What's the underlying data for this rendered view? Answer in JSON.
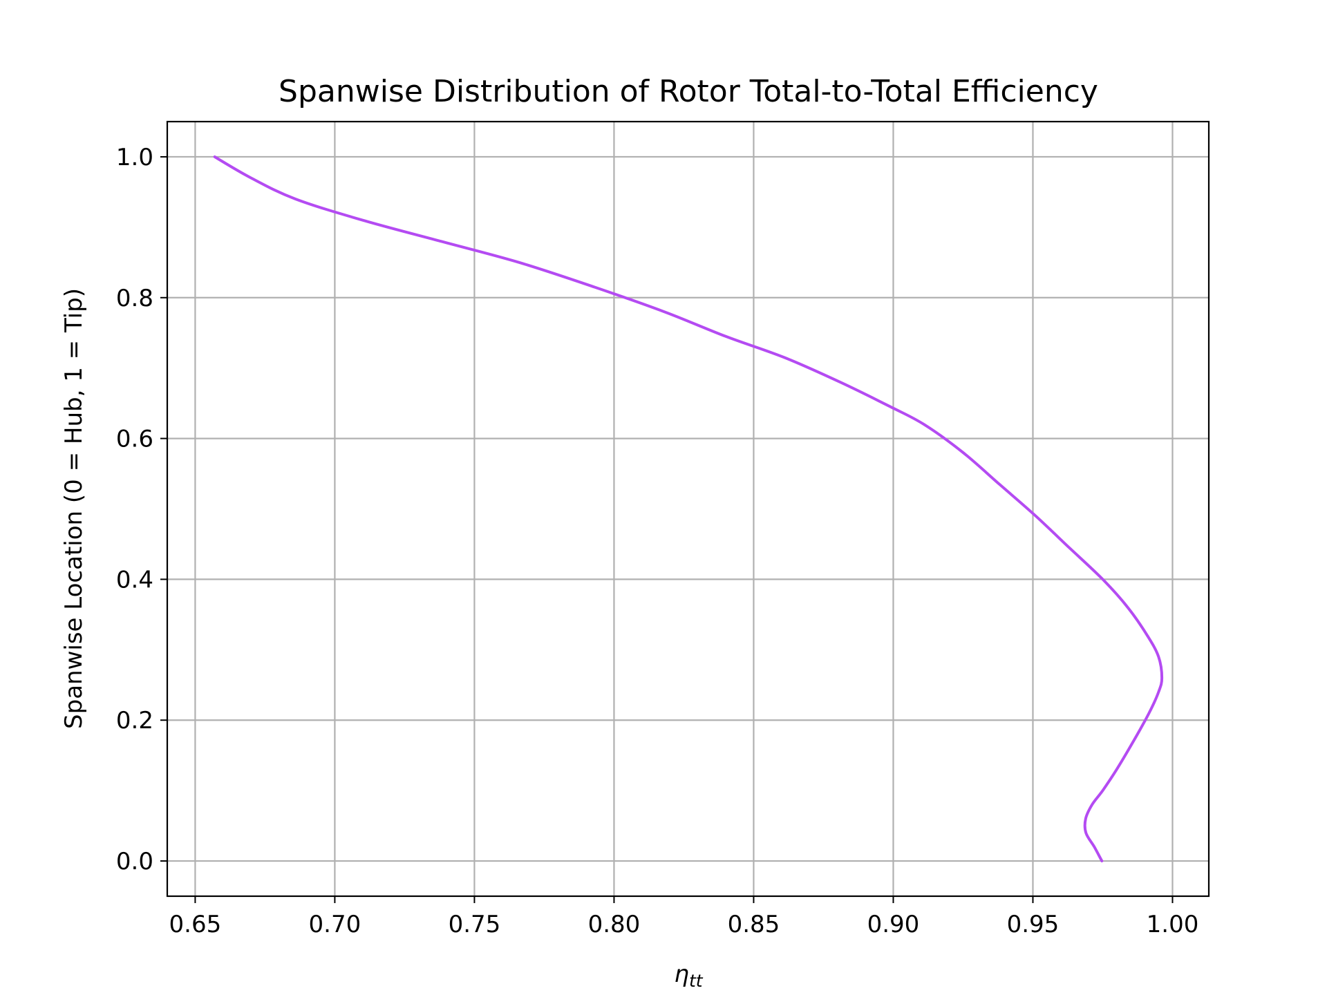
{
  "chart_data": {
    "type": "line",
    "title": "Spanwise Distribution of Rotor Total-to-Total Efficiency",
    "xlabel": "η",
    "xlabel_sub": "tt",
    "ylabel": "Spanwise Location (0 = Hub, 1 = Tip)",
    "xlim": [
      0.64,
      1.013
    ],
    "ylim": [
      -0.05,
      1.05
    ],
    "xticks": [
      0.65,
      0.7,
      0.75,
      0.8,
      0.85,
      0.9,
      0.95,
      1.0
    ],
    "xtick_labels": [
      "0.65",
      "0.70",
      "0.75",
      "0.80",
      "0.85",
      "0.90",
      "0.95",
      "1.00"
    ],
    "yticks": [
      0.0,
      0.2,
      0.4,
      0.6,
      0.8,
      1.0
    ],
    "ytick_labels": [
      "0.0",
      "0.2",
      "0.4",
      "0.6",
      "0.8",
      "1.0"
    ],
    "grid": true,
    "series": [
      {
        "color": "#b44bf2",
        "x": [
          0.9747,
          0.972,
          0.969,
          0.9689,
          0.9712,
          0.975,
          0.98,
          0.986,
          0.9916,
          0.995,
          0.9962,
          0.995,
          0.991,
          0.984,
          0.975,
          0.963,
          0.951,
          0.938,
          0.925,
          0.911,
          0.899,
          0.881,
          0.861,
          0.84,
          0.818,
          0.793,
          0.766,
          0.738,
          0.71,
          0.686,
          0.67,
          0.657
        ],
        "y": [
          0.0,
          0.02,
          0.04,
          0.06,
          0.08,
          0.1,
          0.13,
          0.17,
          0.21,
          0.24,
          0.26,
          0.29,
          0.32,
          0.36,
          0.4,
          0.445,
          0.49,
          0.535,
          0.58,
          0.62,
          0.645,
          0.68,
          0.715,
          0.745,
          0.78,
          0.815,
          0.85,
          0.88,
          0.91,
          0.94,
          0.97,
          1.0
        ]
      }
    ]
  }
}
